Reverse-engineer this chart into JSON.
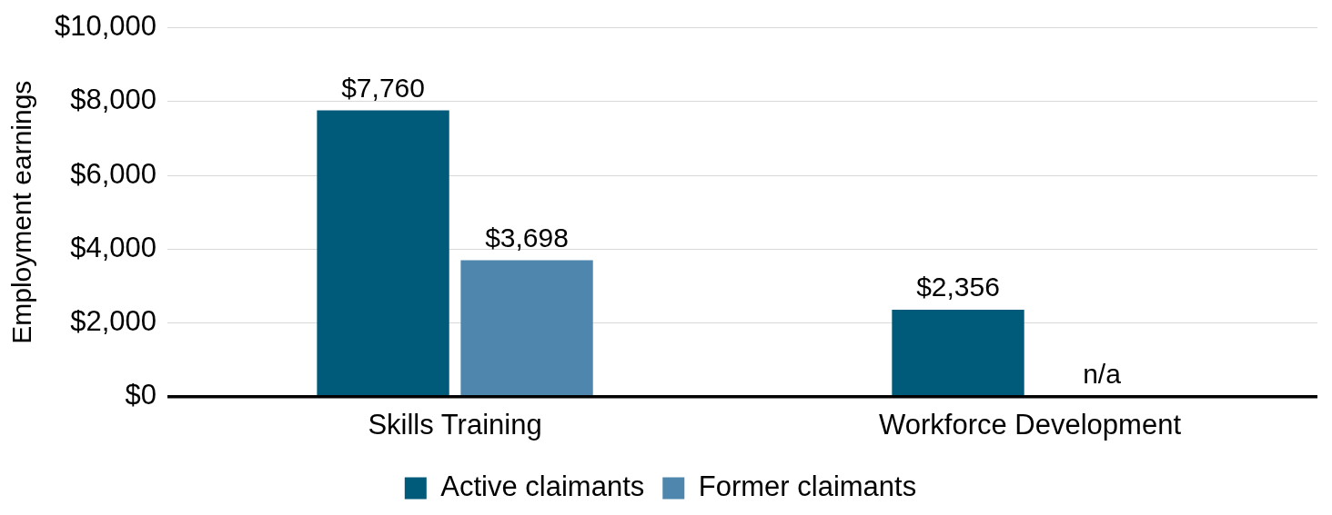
{
  "chart_data": {
    "type": "bar",
    "ylabel": "Employment earnings",
    "categories": [
      "Skills Training",
      "Workforce Development"
    ],
    "series": [
      {
        "name": "Active claimants",
        "color": "#005a7a",
        "values": [
          7760,
          2356
        ],
        "value_labels": [
          "$7,760",
          "$2,356"
        ]
      },
      {
        "name": "Former claimants",
        "color": "#4f86ad",
        "values": [
          3698,
          null
        ],
        "value_labels": [
          "$3,698",
          "n/a"
        ]
      }
    ],
    "ylim": [
      0,
      10000
    ],
    "yticks": [
      {
        "value": 0,
        "label": "$0"
      },
      {
        "value": 2000,
        "label": "$2,000"
      },
      {
        "value": 4000,
        "label": "$4,000"
      },
      {
        "value": 6000,
        "label": "$6,000"
      },
      {
        "value": 8000,
        "label": "$8,000"
      },
      {
        "value": 10000,
        "label": "$10,000"
      }
    ],
    "grid": "y",
    "legend": "bottom"
  }
}
